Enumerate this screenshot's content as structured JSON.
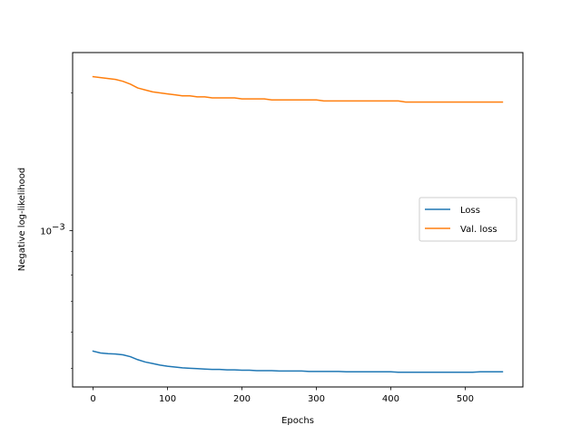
{
  "chart_data": {
    "type": "line",
    "title": "",
    "xlabel": "Epochs",
    "ylabel": "Negative log-likelihood",
    "yscale": "log",
    "xlim": [
      -27.5,
      577.5
    ],
    "ylim": [
      0.000455,
      0.00245
    ],
    "x_ticks": [
      0,
      100,
      200,
      300,
      400,
      500
    ],
    "x_tick_labels": [
      "0",
      "100",
      "200",
      "300",
      "400",
      "500"
    ],
    "y_major_ticks": [
      0.001
    ],
    "y_tick_base": "10",
    "y_tick_exponent": "−3",
    "y_minor_ticks": [
      0.0005,
      0.0006,
      0.0007,
      0.0008,
      0.0009,
      0.002
    ],
    "grid": false,
    "legend": "center-right",
    "series": [
      {
        "name": "Loss",
        "color": "#1f77b4",
        "x": [
          0,
          10,
          20,
          30,
          40,
          50,
          60,
          70,
          80,
          90,
          100,
          110,
          120,
          130,
          140,
          150,
          160,
          170,
          180,
          190,
          200,
          210,
          220,
          230,
          240,
          250,
          260,
          270,
          280,
          290,
          300,
          310,
          320,
          330,
          340,
          350,
          360,
          370,
          380,
          390,
          400,
          410,
          420,
          430,
          440,
          450,
          460,
          470,
          480,
          490,
          500,
          510,
          520,
          530,
          540,
          550
        ],
        "values": [
          0.000545,
          0.00054,
          0.000538,
          0.000537,
          0.000535,
          0.00053,
          0.000522,
          0.000516,
          0.000512,
          0.000508,
          0.000505,
          0.000503,
          0.000501,
          0.0005,
          0.000499,
          0.000498,
          0.000497,
          0.000497,
          0.000496,
          0.000496,
          0.000495,
          0.000495,
          0.000494,
          0.000494,
          0.000494,
          0.000493,
          0.000493,
          0.000493,
          0.000493,
          0.000492,
          0.000492,
          0.000492,
          0.000492,
          0.000492,
          0.000491,
          0.000491,
          0.000491,
          0.000491,
          0.000491,
          0.000491,
          0.000491,
          0.00049,
          0.00049,
          0.00049,
          0.00049,
          0.00049,
          0.00049,
          0.00049,
          0.00049,
          0.00049,
          0.00049,
          0.00049,
          0.000491,
          0.000491,
          0.000491,
          0.000491
        ]
      },
      {
        "name": "Val. loss",
        "color": "#ff7f0e",
        "x": [
          0,
          10,
          20,
          30,
          40,
          50,
          60,
          70,
          80,
          90,
          100,
          110,
          120,
          130,
          140,
          150,
          160,
          170,
          180,
          190,
          200,
          210,
          220,
          230,
          240,
          250,
          260,
          270,
          280,
          290,
          300,
          310,
          320,
          330,
          340,
          350,
          360,
          370,
          380,
          390,
          400,
          410,
          420,
          430,
          440,
          450,
          460,
          470,
          480,
          490,
          500,
          510,
          520,
          530,
          540,
          550
        ],
        "values": [
          0.00217,
          0.00216,
          0.00215,
          0.00214,
          0.00212,
          0.00209,
          0.00205,
          0.00203,
          0.00201,
          0.002,
          0.00199,
          0.00198,
          0.00197,
          0.00197,
          0.00196,
          0.00196,
          0.00195,
          0.00195,
          0.00195,
          0.00195,
          0.00194,
          0.00194,
          0.00194,
          0.00194,
          0.00193,
          0.00193,
          0.00193,
          0.00193,
          0.00193,
          0.00193,
          0.00193,
          0.00192,
          0.00192,
          0.00192,
          0.00192,
          0.00192,
          0.00192,
          0.00192,
          0.00192,
          0.00192,
          0.00192,
          0.00192,
          0.00191,
          0.00191,
          0.00191,
          0.00191,
          0.00191,
          0.00191,
          0.00191,
          0.00191,
          0.00191,
          0.00191,
          0.00191,
          0.00191,
          0.00191,
          0.00191
        ]
      }
    ]
  }
}
